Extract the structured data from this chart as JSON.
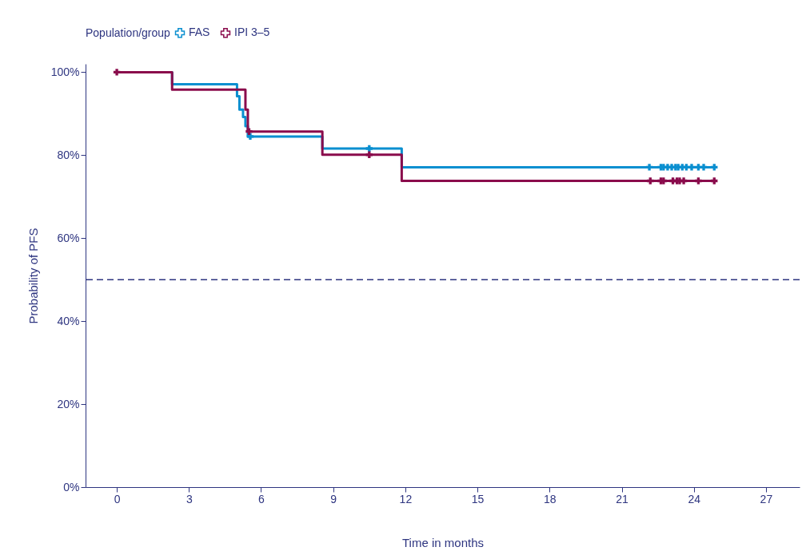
{
  "chart_data": {
    "type": "step",
    "xlabel": "Time in months",
    "ylabel": "Probability of PFS",
    "legend_title": "Population/group",
    "legend": "top",
    "xlim": [
      -1.3,
      28.4
    ],
    "xticks": [
      0,
      3,
      6,
      9,
      12,
      15,
      18,
      21,
      24,
      27
    ],
    "ylim": [
      0,
      102
    ],
    "yticks": [
      {
        "value": 0,
        "label": "0%"
      },
      {
        "value": 20,
        "label": "20%"
      },
      {
        "value": 40,
        "label": "40%"
      },
      {
        "value": 60,
        "label": "60%"
      },
      {
        "value": 80,
        "label": "80%"
      },
      {
        "value": 100,
        "label": "100%"
      }
    ],
    "ref_lines": [
      {
        "axis": "y",
        "value": 50,
        "color": "#2e3580",
        "line_style": "dashed"
      }
    ],
    "series": [
      {
        "name": "FAS",
        "color": "#0a8fd0",
        "x": [
          0,
          2.3,
          5.0,
          5.1,
          5.25,
          5.35,
          5.45,
          8.55,
          11.85,
          24.85
        ],
        "values": [
          100,
          97.1,
          94.2,
          91.0,
          89.2,
          87.0,
          84.5,
          81.6,
          77.1,
          77.1
        ]
      },
      {
        "name": "IPI 3–5",
        "color": "#8a0c4c",
        "x": [
          0,
          2.3,
          5.35,
          5.45,
          8.55,
          11.85,
          24.85
        ],
        "values": [
          100,
          95.8,
          91.0,
          85.7,
          80.1,
          73.8,
          73.8
        ]
      },
      {
        "type": "scatter",
        "marker": "cross",
        "color": "#0a8fd0",
        "x": [
          5.55,
          10.5,
          22.15,
          22.63,
          22.74,
          22.91,
          23.08,
          23.24,
          23.35,
          23.52,
          23.69,
          23.91,
          24.19,
          24.41,
          24.85
        ],
        "values": [
          84.5,
          81.6,
          77.1,
          77.1,
          77.1,
          77.1,
          77.1,
          77.1,
          77.1,
          77.1,
          77.1,
          77.1,
          77.1,
          77.1,
          77.1
        ]
      },
      {
        "type": "scatter",
        "marker": "cross",
        "color": "#8a0c4c",
        "x": [
          0,
          5.5,
          10.5,
          22.19,
          22.63,
          22.74,
          23.13,
          23.3,
          23.41,
          23.58,
          24.19,
          24.85
        ],
        "values": [
          100,
          85.7,
          80.1,
          73.8,
          73.8,
          73.8,
          73.8,
          73.8,
          73.8,
          73.8,
          73.8,
          73.8
        ]
      }
    ]
  }
}
